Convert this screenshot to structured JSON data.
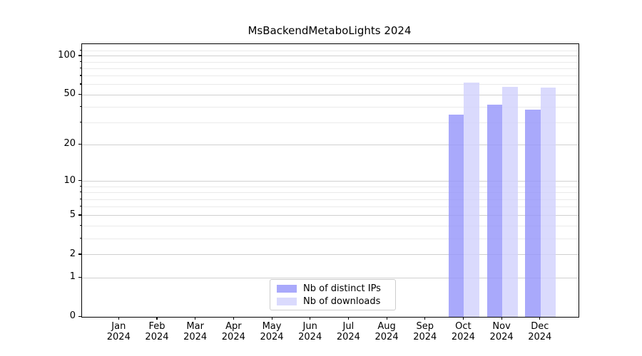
{
  "figure": {
    "background": "#ffffff"
  },
  "chart_data": {
    "type": "bar",
    "title": "MsBackendMetaboLights 2024",
    "year": "2024",
    "categories": [
      "Jan",
      "Feb",
      "Mar",
      "Apr",
      "May",
      "Jun",
      "Jul",
      "Aug",
      "Sep",
      "Oct",
      "Nov",
      "Dec"
    ],
    "series": [
      {
        "name": "Nb of distinct IPs",
        "color": "#9696fa",
        "opacity": 0.82,
        "values": [
          null,
          null,
          null,
          null,
          null,
          null,
          null,
          null,
          null,
          35,
          42,
          38
        ]
      },
      {
        "name": "Nb of downloads",
        "color": "#d2d2fc",
        "opacity": 0.82,
        "values": [
          null,
          null,
          null,
          null,
          null,
          null,
          null,
          null,
          null,
          62,
          58,
          57
        ]
      }
    ],
    "y_scale": "log1p",
    "y_ticks_major": [
      0,
      1,
      2,
      5,
      10,
      20,
      50,
      100
    ],
    "y_ticks_minor": [
      3,
      4,
      6,
      7,
      8,
      9,
      30,
      40,
      60,
      70,
      80,
      90,
      110
    ],
    "ylim": [
      0,
      124
    ],
    "grid": true,
    "legend_position": "lower center",
    "colors": {
      "major_grid": "#d0d0d0",
      "minor_grid": "#eaeaea",
      "spine": "#000000",
      "tick": "#000000"
    }
  }
}
